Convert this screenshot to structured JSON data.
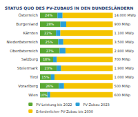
{
  "chart_data": {
    "type": "bar",
    "title": "STATUS QUO DES PV-ZUBAUS IN DEN BUNDESLÄNDERN",
    "orientation": "horizontal",
    "stacked": true,
    "legend": "bottom",
    "tick_labels": "y",
    "categories": [
      "Österreich",
      "Burgenland",
      "Kärnten",
      "Niederösterreich",
      "Oberösterreich",
      "Salzburg",
      "Steiermark",
      "Tirol",
      "Vorarlberg",
      "Wien"
    ],
    "series": [
      {
        "name": "PV-Leistung bis 2022",
        "color": "#5aa832",
        "data_labels": true,
        "values": [
          24,
          28,
          22,
          25,
          27,
          18,
          23,
          15,
          26,
          10
        ],
        "value_labels": [
          "24%",
          "28%",
          "22%",
          "25%",
          "27%",
          "18%",
          "23%",
          "15%",
          "26%",
          "10%"
        ]
      },
      {
        "name": "PV-Zubau 2023",
        "color": "#2a9fd6",
        "values": [
          7,
          8,
          6,
          7,
          8,
          5,
          6,
          5,
          7,
          4
        ]
      },
      {
        "name": "Erforderlicher PV-Zubau bis 2030",
        "color": "#f5c400",
        "values": [
          69,
          64,
          72,
          68,
          65,
          77,
          71,
          80,
          67,
          86
        ]
      }
    ],
    "targets": [
      "14.000 MWp",
      "900 MWp",
      "1.100 MWp",
      "3.500 MWp",
      "2.800 MWp",
      "700 MWp",
      "1.900 MWp",
      "1.000 MWp",
      "500 MWp",
      "600 MWp"
    ],
    "xlim": [
      0,
      100
    ]
  }
}
